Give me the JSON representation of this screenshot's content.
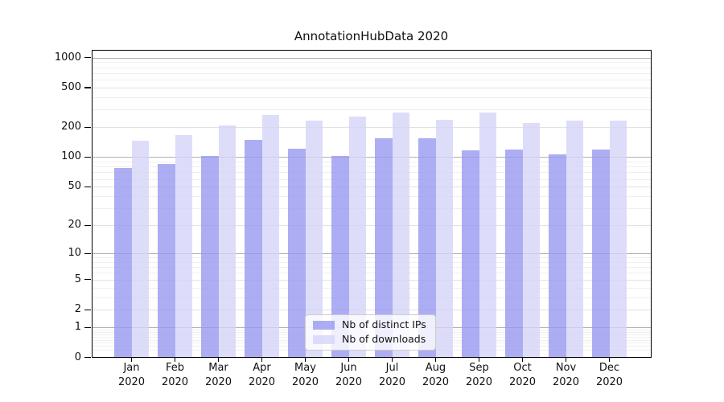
{
  "chart_data": {
    "type": "bar",
    "title": "AnnotationHubData 2020",
    "year_label": "2020",
    "categories": [
      "Jan",
      "Feb",
      "Mar",
      "Apr",
      "May",
      "Jun",
      "Jul",
      "Aug",
      "Sep",
      "Oct",
      "Nov",
      "Dec"
    ],
    "series": [
      {
        "name": "Nb of distinct IPs",
        "color": "#9898f0",
        "values": [
          77,
          85,
          103,
          149,
          121,
          103,
          156,
          154,
          116,
          120,
          106,
          119
        ]
      },
      {
        "name": "Nb of downloads",
        "color": "#d4d4f9",
        "values": [
          146,
          168,
          210,
          263,
          231,
          257,
          283,
          236,
          279,
          222,
          231,
          234
        ]
      }
    ],
    "yticks": [
      0,
      1,
      2,
      5,
      10,
      20,
      50,
      100,
      200,
      500,
      1000
    ],
    "yscale": "log10(1+x)",
    "ylim": [
      0,
      1200
    ],
    "grid": true,
    "legend_position": "bottom-center",
    "colors": {
      "grid_power": "#b0b0b0",
      "grid_labeled": "#e2e2e2",
      "grid_minor": "#efefef",
      "text": "#111111"
    }
  }
}
